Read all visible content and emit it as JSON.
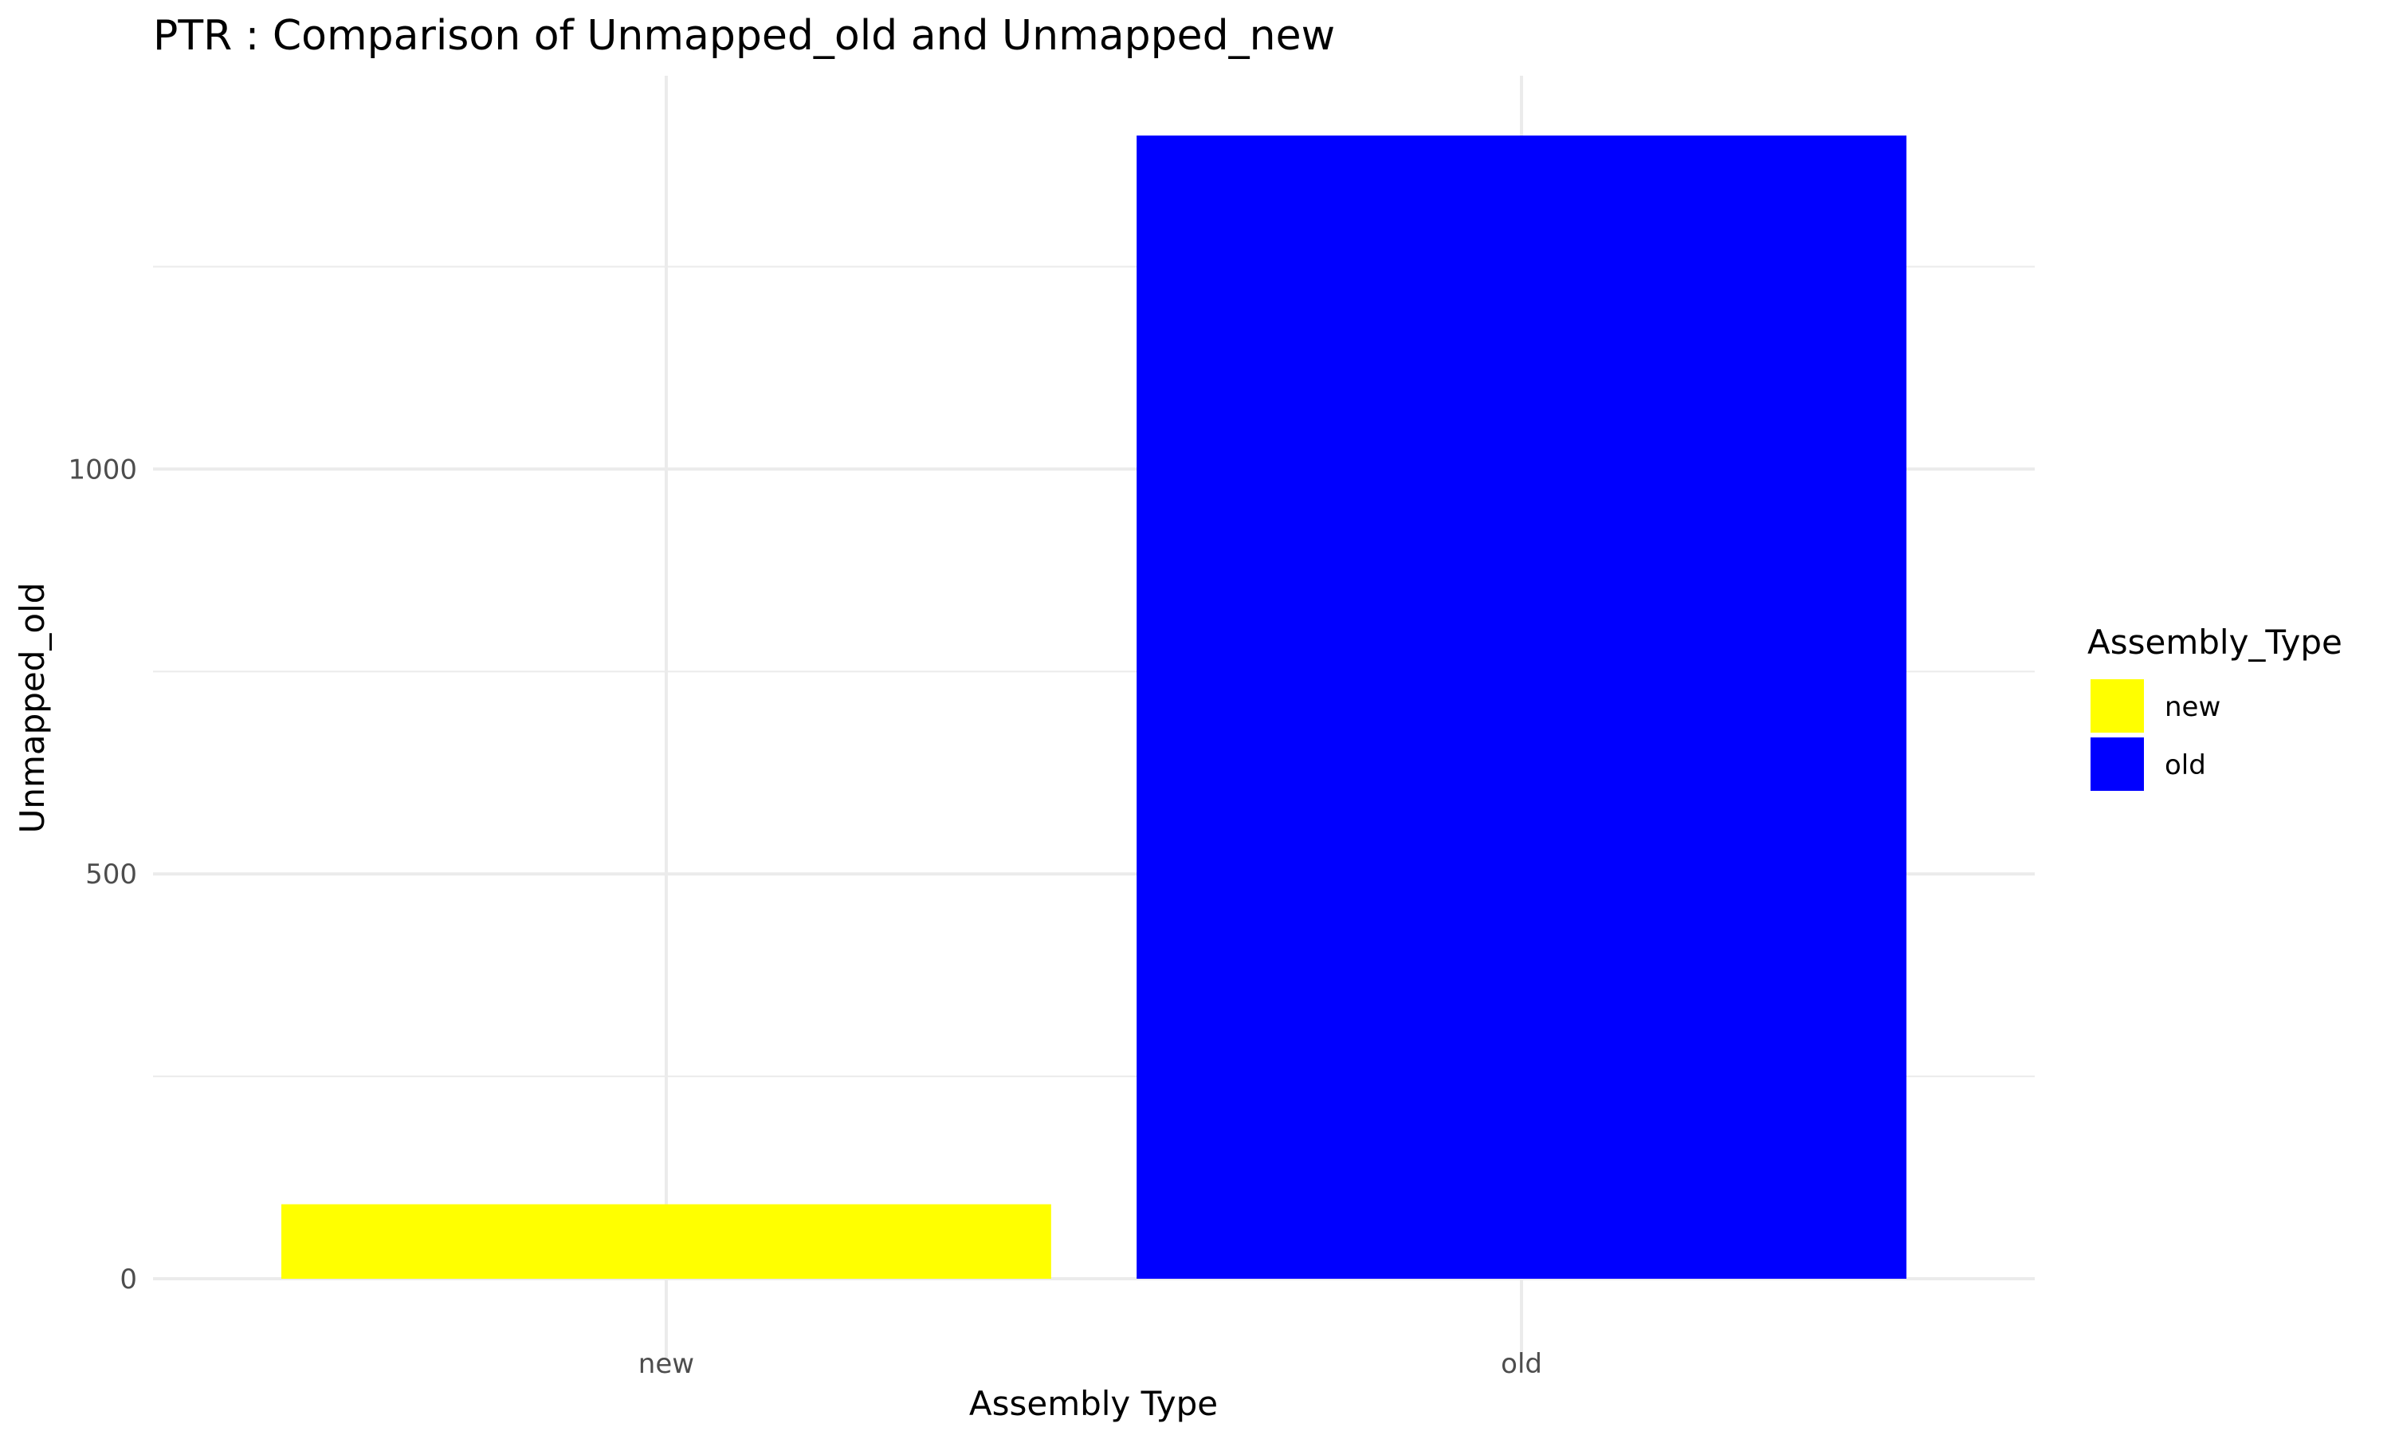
{
  "chart_data": {
    "type": "bar",
    "title": "PTR : Comparison of Unmapped_old and Unmapped_new",
    "xlabel": "Assembly Type",
    "ylabel": "Unmapped_old",
    "categories": [
      "new",
      "old"
    ],
    "values": [
      92,
      1412
    ],
    "colors": [
      "#ffff00",
      "#0000ff"
    ],
    "ylim": [
      0,
      1412
    ],
    "yticks": [
      0,
      500,
      1000
    ],
    "grid": true,
    "legend": {
      "title": "Assembly_Type",
      "placement": "right",
      "entries": [
        {
          "label": "new",
          "color": "#ffff00"
        },
        {
          "label": "old",
          "color": "#0000ff"
        }
      ]
    }
  }
}
